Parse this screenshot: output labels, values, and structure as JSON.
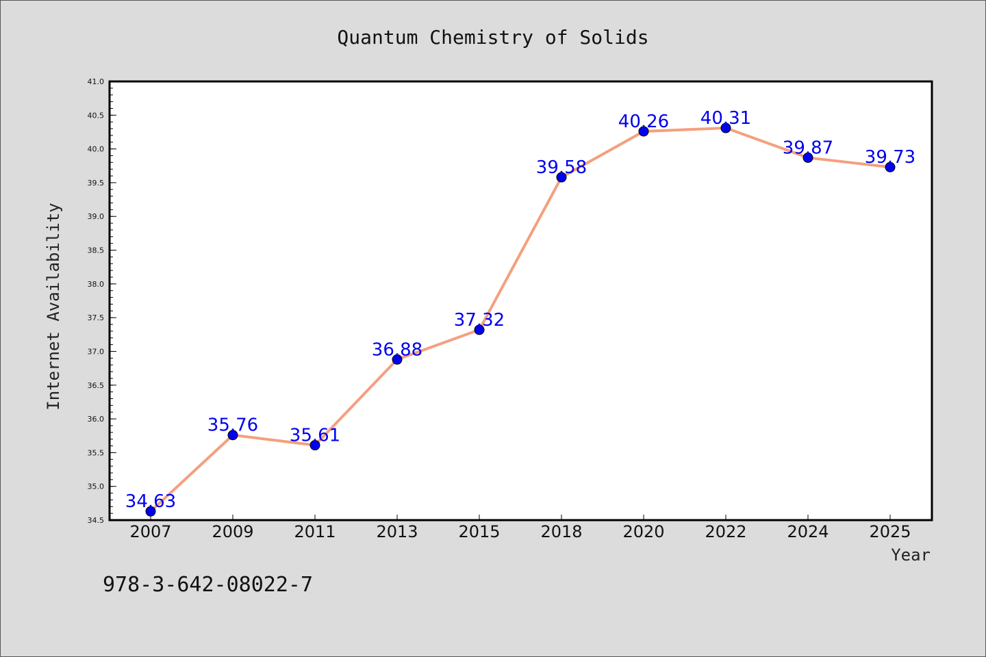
{
  "chart_data": {
    "type": "line",
    "title": "Quantum Chemistry of Solids",
    "xlabel": "Year",
    "ylabel": "Internet Availability",
    "categories": [
      "2007",
      "2009",
      "2011",
      "2013",
      "2015",
      "2018",
      "2020",
      "2022",
      "2024",
      "2025"
    ],
    "series": [
      {
        "values": [
          34.63,
          35.76,
          35.61,
          36.88,
          37.32,
          39.58,
          40.26,
          40.31,
          39.87,
          39.73
        ]
      }
    ],
    "data_labels": [
      "34.63",
      "35.76",
      "35.61",
      "36.88",
      "37.32",
      "39.58",
      "40.26",
      "40.31",
      "39.87",
      "39.73"
    ],
    "ylim": [
      34.5,
      41.0
    ],
    "yticks": [
      "34.5",
      "35.0",
      "35.5",
      "36.0",
      "36.5",
      "37.0",
      "37.5",
      "38.0",
      "38.5",
      "39.0",
      "39.5",
      "40.0",
      "40.5",
      "41.0"
    ],
    "grid": false,
    "colors": {
      "line": "#f4a07e",
      "marker": "#0000ee",
      "label": "#0000ee",
      "plot_bg": "#ffffff",
      "page_bg": "#dcdcdc"
    }
  },
  "footer": {
    "isbn": "978-3-642-08022-7"
  }
}
